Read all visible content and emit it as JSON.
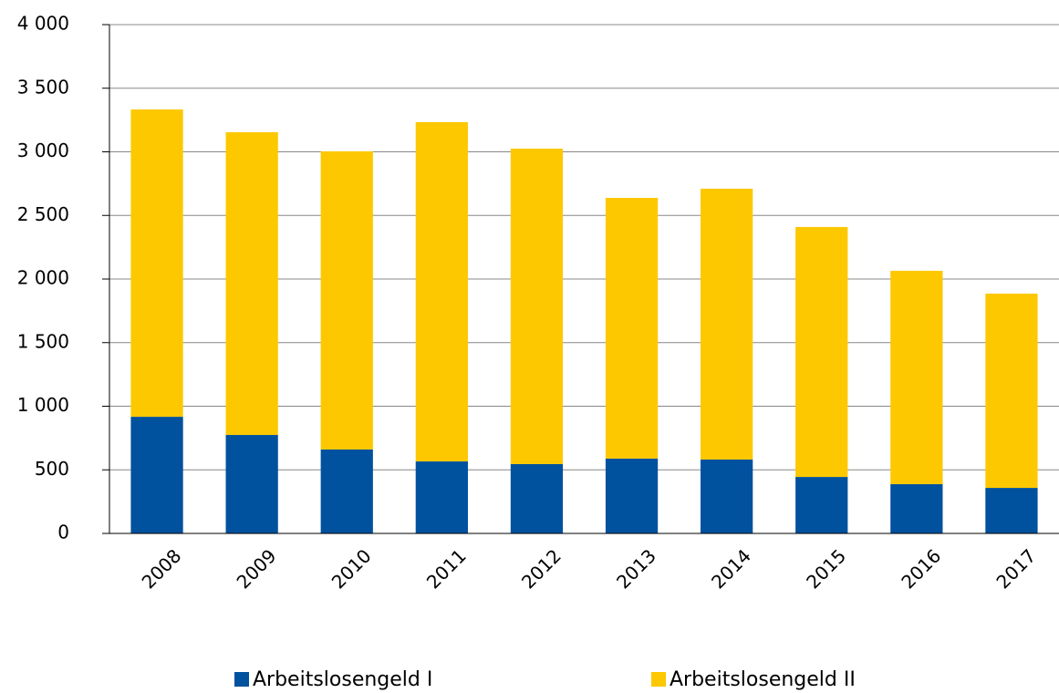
{
  "chart_data": {
    "type": "stacked_bar",
    "categories": [
      "2008",
      "2009",
      "2010",
      "2011",
      "2012",
      "2013",
      "2014",
      "2015",
      "2016",
      "2017"
    ],
    "series": [
      {
        "name": "Arbeitslosengeld I",
        "color": "#00519e",
        "values": [
          917,
          774,
          660,
          566,
          545,
          588,
          581,
          444,
          387,
          358
        ]
      },
      {
        "name": "Arbeitslosengeld II",
        "color": "#fdc800",
        "values": [
          2416,
          2380,
          2344,
          2667,
          2480,
          2050,
          2129,
          1965,
          1678,
          1527
        ]
      }
    ],
    "ylim": [
      0,
      4000
    ],
    "yticks": [
      0,
      500,
      {
        "value": 1000,
        "label": "1 000"
      },
      {
        "value": 1500,
        "label": "1 500"
      },
      {
        "value": 2000,
        "label": "2 000"
      },
      {
        "value": 2500,
        "label": "2 500"
      },
      {
        "value": 3000,
        "label": "3 000"
      },
      {
        "value": 3500,
        "label": "3 500"
      },
      {
        "value": 4000,
        "label": "4 000"
      }
    ],
    "grid": true,
    "legend": "bottom"
  }
}
